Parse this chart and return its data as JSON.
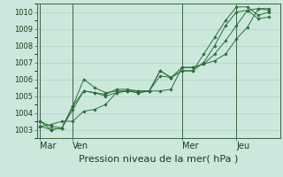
{
  "bg_color": "#cce8dd",
  "grid_color": "#aaccbb",
  "line_color": "#2d6e3a",
  "marker_color": "#2d6e3a",
  "xlabel": "Pression niveau de la mer( hPa )",
  "ylim": [
    1002.5,
    1010.5
  ],
  "yticks": [
    1003,
    1004,
    1005,
    1006,
    1007,
    1008,
    1009,
    1010
  ],
  "xtick_labels": [
    "Mar",
    "Ven",
    "Mer",
    "Jeu"
  ],
  "xtick_positions": [
    0,
    3,
    13,
    18
  ],
  "vline_positions": [
    0,
    3,
    13,
    18
  ],
  "xlim": [
    -0.3,
    22
  ],
  "series": [
    [
      1003.2,
      1003.3,
      1003.5,
      1003.5,
      1004.1,
      1004.2,
      1004.5,
      1005.2,
      1005.3,
      1005.3,
      1005.3,
      1005.3,
      1005.4,
      1006.7,
      1006.7,
      1006.9,
      1007.1,
      1007.5,
      1008.4,
      1009.1,
      1010.2,
      1010.2
    ],
    [
      1003.2,
      1003.0,
      1003.1,
      1004.4,
      1006.0,
      1005.5,
      1005.2,
      1005.3,
      1005.3,
      1005.2,
      1005.3,
      1006.5,
      1006.1,
      1006.7,
      1006.7,
      1006.9,
      1007.5,
      1008.3,
      1009.2,
      1010.1,
      1010.2,
      1010.1
    ],
    [
      1003.5,
      1003.0,
      1003.1,
      1004.2,
      1005.3,
      1005.2,
      1005.0,
      1005.2,
      1005.3,
      1005.2,
      1005.3,
      1006.2,
      1006.1,
      1006.5,
      1006.5,
      1007.5,
      1008.5,
      1009.5,
      1010.3,
      1010.3,
      1009.8,
      1010.0
    ],
    [
      1003.5,
      1003.2,
      1003.1,
      1004.4,
      1005.3,
      1005.2,
      1005.1,
      1005.4,
      1005.4,
      1005.3,
      1005.3,
      1006.5,
      1006.1,
      1006.5,
      1006.5,
      1007.0,
      1008.0,
      1009.2,
      1010.0,
      1010.1,
      1009.6,
      1009.7
    ]
  ],
  "n_points": 22,
  "spine_color": "#3a6640",
  "xlabel_fontsize": 8,
  "ytick_fontsize": 6,
  "xtick_fontsize": 7
}
